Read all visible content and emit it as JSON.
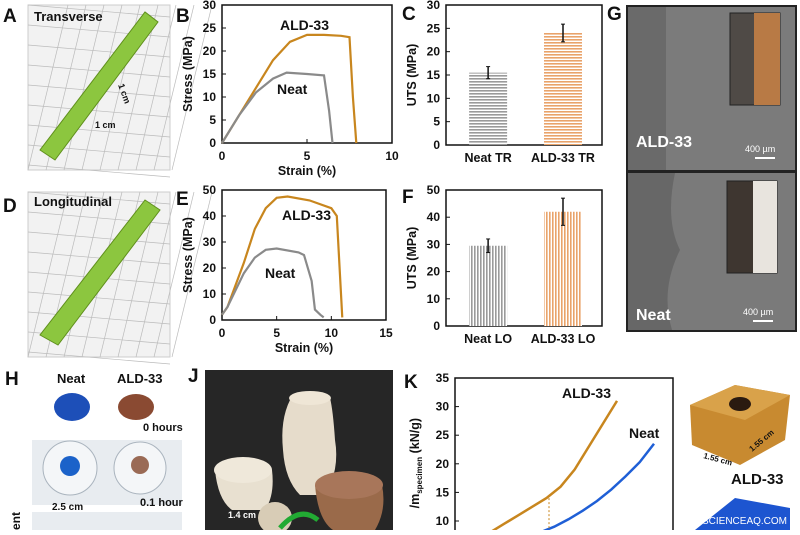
{
  "panels": {
    "A": {
      "letter": "A",
      "label": "Transverse",
      "dims": [
        "1 cm",
        "1 cm"
      ]
    },
    "D": {
      "letter": "D",
      "label": "Longitudinal"
    },
    "G": {
      "letter": "G",
      "top_label": "ALD-33",
      "bottom_label": "Neat",
      "scale_bar": "400 µm"
    },
    "H": {
      "letter": "H",
      "col_labels": [
        "Neat",
        "ALD-33"
      ],
      "times": [
        "0 hours",
        "0.1 hour"
      ],
      "dim": "2.5 cm",
      "side_label": "ent"
    },
    "J": {
      "letter": "J",
      "dim": "1.4 cm"
    },
    "K_photo": {
      "label": "ALD-33",
      "dims": [
        "1.55 cm",
        "1.55 cm"
      ]
    },
    "watermark": "SCIENCEAQ.COM"
  },
  "colors": {
    "ald33": "#c8861e",
    "neat": "#8a8a8a",
    "neat_k": "#1f5fd6",
    "ald33_bar": "#e9a36a",
    "neat_bar": "#9a9a9a"
  },
  "chart_data": [
    {
      "id": "B",
      "letter": "B",
      "type": "line",
      "xlabel": "Strain (%)",
      "ylabel": "Stress (MPa)",
      "xlim": [
        0,
        10
      ],
      "ylim": [
        0,
        30
      ],
      "xticks": [
        "0",
        "5",
        "10"
      ],
      "yticks": [
        "0",
        "5",
        "10",
        "15",
        "20",
        "25",
        "30"
      ],
      "series": [
        {
          "name": "ALD-33",
          "x": [
            0,
            1,
            2,
            3,
            4,
            5,
            6,
            7,
            7.5,
            7.7,
            7.9
          ],
          "y": [
            0,
            6,
            12,
            18,
            22,
            23.5,
            23.5,
            23.3,
            23,
            10,
            0
          ]
        },
        {
          "name": "Neat",
          "x": [
            0,
            1,
            2,
            3,
            3.8,
            5,
            6,
            6.3,
            6.5
          ],
          "y": [
            0,
            6,
            11,
            14,
            15.3,
            15,
            14.7,
            7,
            0
          ]
        }
      ]
    },
    {
      "id": "C",
      "letter": "C",
      "type": "bar",
      "ylabel": "UTS (MPa)",
      "ylim": [
        0,
        30
      ],
      "yticks": [
        "0",
        "5",
        "10",
        "15",
        "20",
        "25",
        "30"
      ],
      "categories": [
        "Neat TR",
        "ALD-33 TR"
      ],
      "values": [
        15.5,
        24
      ],
      "errors": [
        1.3,
        1.9
      ],
      "hatch": "horizontal"
    },
    {
      "id": "E",
      "letter": "E",
      "type": "line",
      "xlabel": "Strain (%)",
      "ylabel": "Stress (MPa)",
      "xlim": [
        0,
        15
      ],
      "ylim": [
        0,
        50
      ],
      "xticks": [
        "0",
        "5",
        "10",
        "15"
      ],
      "yticks": [
        "0",
        "10",
        "20",
        "30",
        "40",
        "50"
      ],
      "series": [
        {
          "name": "ALD-33",
          "x": [
            0,
            0.5,
            2,
            3,
            4,
            5,
            6,
            8,
            10,
            10.5,
            11
          ],
          "y": [
            2,
            5,
            22,
            35,
            43,
            47,
            47.5,
            46,
            43,
            40,
            1
          ]
        },
        {
          "name": "Neat",
          "x": [
            0,
            0.5,
            2,
            3,
            4,
            5,
            7,
            7.5,
            8.2,
            8.5,
            9,
            9.3
          ],
          "y": [
            2,
            5,
            18,
            24,
            27,
            27.5,
            26,
            25,
            15,
            4,
            2,
            1
          ]
        }
      ]
    },
    {
      "id": "F",
      "letter": "F",
      "type": "bar",
      "ylabel": "UTS (MPa)",
      "ylim": [
        0,
        50
      ],
      "yticks": [
        "0",
        "10",
        "20",
        "30",
        "40",
        "50"
      ],
      "categories": [
        "Neat LO",
        "ALD-33 LO"
      ],
      "values": [
        29.5,
        42
      ],
      "errors": [
        2.5,
        5
      ],
      "hatch": "vertical"
    },
    {
      "id": "K",
      "letter": "K",
      "type": "line",
      "ylabel": "F_load/m_specimen (kN/g)",
      "ylabel_visible": "/m",
      "ylabel_sub": "specimen",
      "ylabel_tail": " (kN/g)",
      "ylim_visible": [
        10,
        35
      ],
      "yticks": [
        "10",
        "15",
        "20",
        "25",
        "30",
        "35"
      ],
      "series": [
        {
          "name": "ALD-33",
          "y": [
            8,
            9.5,
            11,
            12.5,
            14,
            16,
            19,
            23,
            27,
            31
          ]
        },
        {
          "name": "Neat",
          "y": [
            8,
            9,
            10.3,
            11.8,
            13.5,
            15.5,
            17.8,
            20.3,
            23.5
          ]
        }
      ]
    }
  ]
}
